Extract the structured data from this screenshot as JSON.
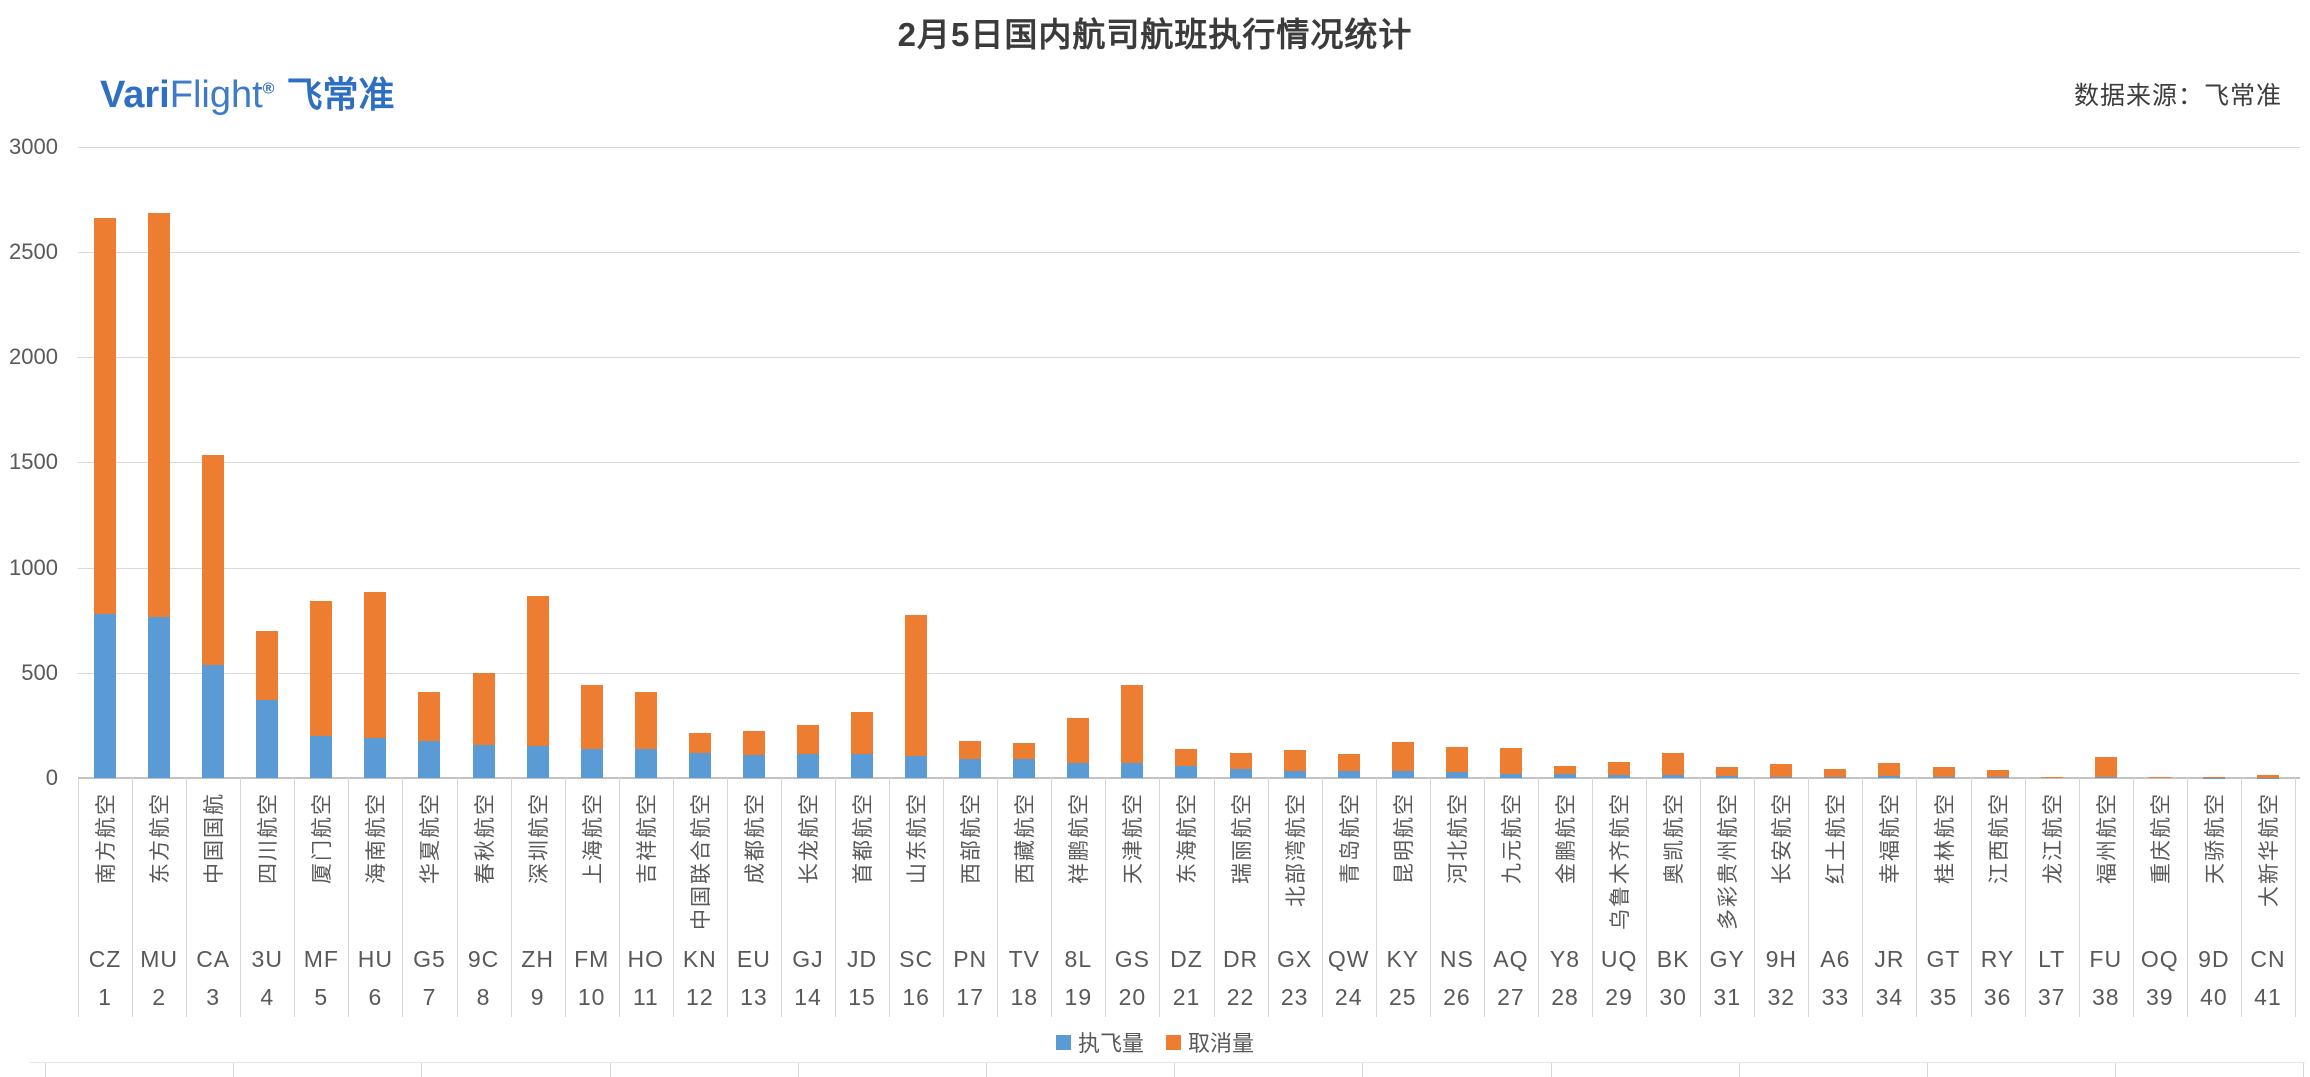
{
  "title": "2月5日国内航司航班执行情况统计",
  "logo": {
    "brand_bold": "Vari",
    "brand_light": "Flight",
    "registered": "®",
    "brand_cn": "飞常准"
  },
  "source_note": "数据来源：飞常准",
  "colors": {
    "executed_blue": "#5B9BD5",
    "cancelled_orange": "#ED7D31",
    "gridline": "#D9D9D9",
    "axis_text": "#595959",
    "brand_blue": "#2E6FC4"
  },
  "legend": [
    {
      "label": "执飞量",
      "color": "#5B9BD5"
    },
    {
      "label": "取消量",
      "color": "#ED7D31"
    }
  ],
  "chart_data": {
    "type": "bar",
    "stacked": true,
    "title": "2月5日国内航司航班执行情况统计",
    "ylim": [
      0,
      3000
    ],
    "ytick_step": 500,
    "yticks": [
      "0",
      "500",
      "1000",
      "1500",
      "2000",
      "2500",
      "3000"
    ],
    "grid": "horizontal",
    "legend_position": "bottom",
    "series_names": [
      "执飞量",
      "取消量"
    ],
    "airlines": [
      {
        "rank": "1",
        "code": "CZ",
        "name": "南方航空",
        "executed": 780,
        "cancelled": 1880
      },
      {
        "rank": "2",
        "code": "MU",
        "name": "东方航空",
        "executed": 765,
        "cancelled": 1920
      },
      {
        "rank": "3",
        "code": "CA",
        "name": "中国国航",
        "executed": 535,
        "cancelled": 1000
      },
      {
        "rank": "4",
        "code": "3U",
        "name": "四川航空",
        "executed": 370,
        "cancelled": 330
      },
      {
        "rank": "5",
        "code": "MF",
        "name": "厦门航空",
        "executed": 200,
        "cancelled": 640
      },
      {
        "rank": "6",
        "code": "HU",
        "name": "海南航空",
        "executed": 190,
        "cancelled": 695
      },
      {
        "rank": "7",
        "code": "G5",
        "name": "华夏航空",
        "executed": 175,
        "cancelled": 235
      },
      {
        "rank": "8",
        "code": "9C",
        "name": "春秋航空",
        "executed": 155,
        "cancelled": 345
      },
      {
        "rank": "9",
        "code": "ZH",
        "name": "深圳航空",
        "executed": 150,
        "cancelled": 715
      },
      {
        "rank": "10",
        "code": "FM",
        "name": "上海航空",
        "executed": 140,
        "cancelled": 300
      },
      {
        "rank": "11",
        "code": "HO",
        "name": "吉祥航空",
        "executed": 138,
        "cancelled": 272
      },
      {
        "rank": "12",
        "code": "KN",
        "name": "中国联合航空",
        "executed": 120,
        "cancelled": 95
      },
      {
        "rank": "13",
        "code": "EU",
        "name": "成都航空",
        "executed": 107,
        "cancelled": 116
      },
      {
        "rank": "14",
        "code": "GJ",
        "name": "长龙航空",
        "executed": 113,
        "cancelled": 137
      },
      {
        "rank": "15",
        "code": "JD",
        "name": "首都航空",
        "executed": 112,
        "cancelled": 200
      },
      {
        "rank": "16",
        "code": "SC",
        "name": "山东航空",
        "executed": 103,
        "cancelled": 670
      },
      {
        "rank": "17",
        "code": "PN",
        "name": "西部航空",
        "executed": 89,
        "cancelled": 86
      },
      {
        "rank": "18",
        "code": "TV",
        "name": "西藏航空",
        "executed": 88,
        "cancelled": 80
      },
      {
        "rank": "19",
        "code": "8L",
        "name": "祥鹏航空",
        "executed": 70,
        "cancelled": 214
      },
      {
        "rank": "20",
        "code": "GS",
        "name": "天津航空",
        "executed": 70,
        "cancelled": 373
      },
      {
        "rank": "21",
        "code": "DZ",
        "name": "东海航空",
        "executed": 55,
        "cancelled": 81
      },
      {
        "rank": "22",
        "code": "DR",
        "name": "瑞丽航空",
        "executed": 45,
        "cancelled": 76
      },
      {
        "rank": "23",
        "code": "GX",
        "name": "北部湾航空",
        "executed": 34,
        "cancelled": 99
      },
      {
        "rank": "24",
        "code": "QW",
        "name": "青岛航空",
        "executed": 35,
        "cancelled": 81
      },
      {
        "rank": "25",
        "code": "KY",
        "name": "昆明航空",
        "executed": 32,
        "cancelled": 140
      },
      {
        "rank": "26",
        "code": "NS",
        "name": "河北航空",
        "executed": 30,
        "cancelled": 115
      },
      {
        "rank": "27",
        "code": "AQ",
        "name": "九元航空",
        "executed": 19,
        "cancelled": 123
      },
      {
        "rank": "28",
        "code": "Y8",
        "name": "金鹏航空",
        "executed": 20,
        "cancelled": 35
      },
      {
        "rank": "29",
        "code": "UQ",
        "name": "乌鲁木齐航空",
        "executed": 16,
        "cancelled": 62
      },
      {
        "rank": "30",
        "code": "BK",
        "name": "奥凯航空",
        "executed": 16,
        "cancelled": 102
      },
      {
        "rank": "31",
        "code": "GY",
        "name": "多彩贵州航空",
        "executed": 8,
        "cancelled": 46
      },
      {
        "rank": "32",
        "code": "9H",
        "name": "长安航空",
        "executed": 5,
        "cancelled": 60
      },
      {
        "rank": "33",
        "code": "A6",
        "name": "红土航空",
        "executed": 5,
        "cancelled": 38
      },
      {
        "rank": "34",
        "code": "JR",
        "name": "幸福航空",
        "executed": 11,
        "cancelled": 58
      },
      {
        "rank": "35",
        "code": "GT",
        "name": "桂林航空",
        "executed": 6,
        "cancelled": 47
      },
      {
        "rank": "36",
        "code": "RY",
        "name": "江西航空",
        "executed": 3,
        "cancelled": 34
      },
      {
        "rank": "37",
        "code": "LT",
        "name": "龙江航空",
        "executed": 5,
        "cancelled": 2
      },
      {
        "rank": "38",
        "code": "FU",
        "name": "福州航空",
        "executed": 6,
        "cancelled": 94
      },
      {
        "rank": "39",
        "code": "OQ",
        "name": "重庆航空",
        "executed": 3,
        "cancelled": 4
      },
      {
        "rank": "40",
        "code": "9D",
        "name": "天骄航空",
        "executed": 2,
        "cancelled": 4
      },
      {
        "rank": "41",
        "code": "CN",
        "name": "大新华航空",
        "executed": 2,
        "cancelled": 10
      }
    ]
  }
}
